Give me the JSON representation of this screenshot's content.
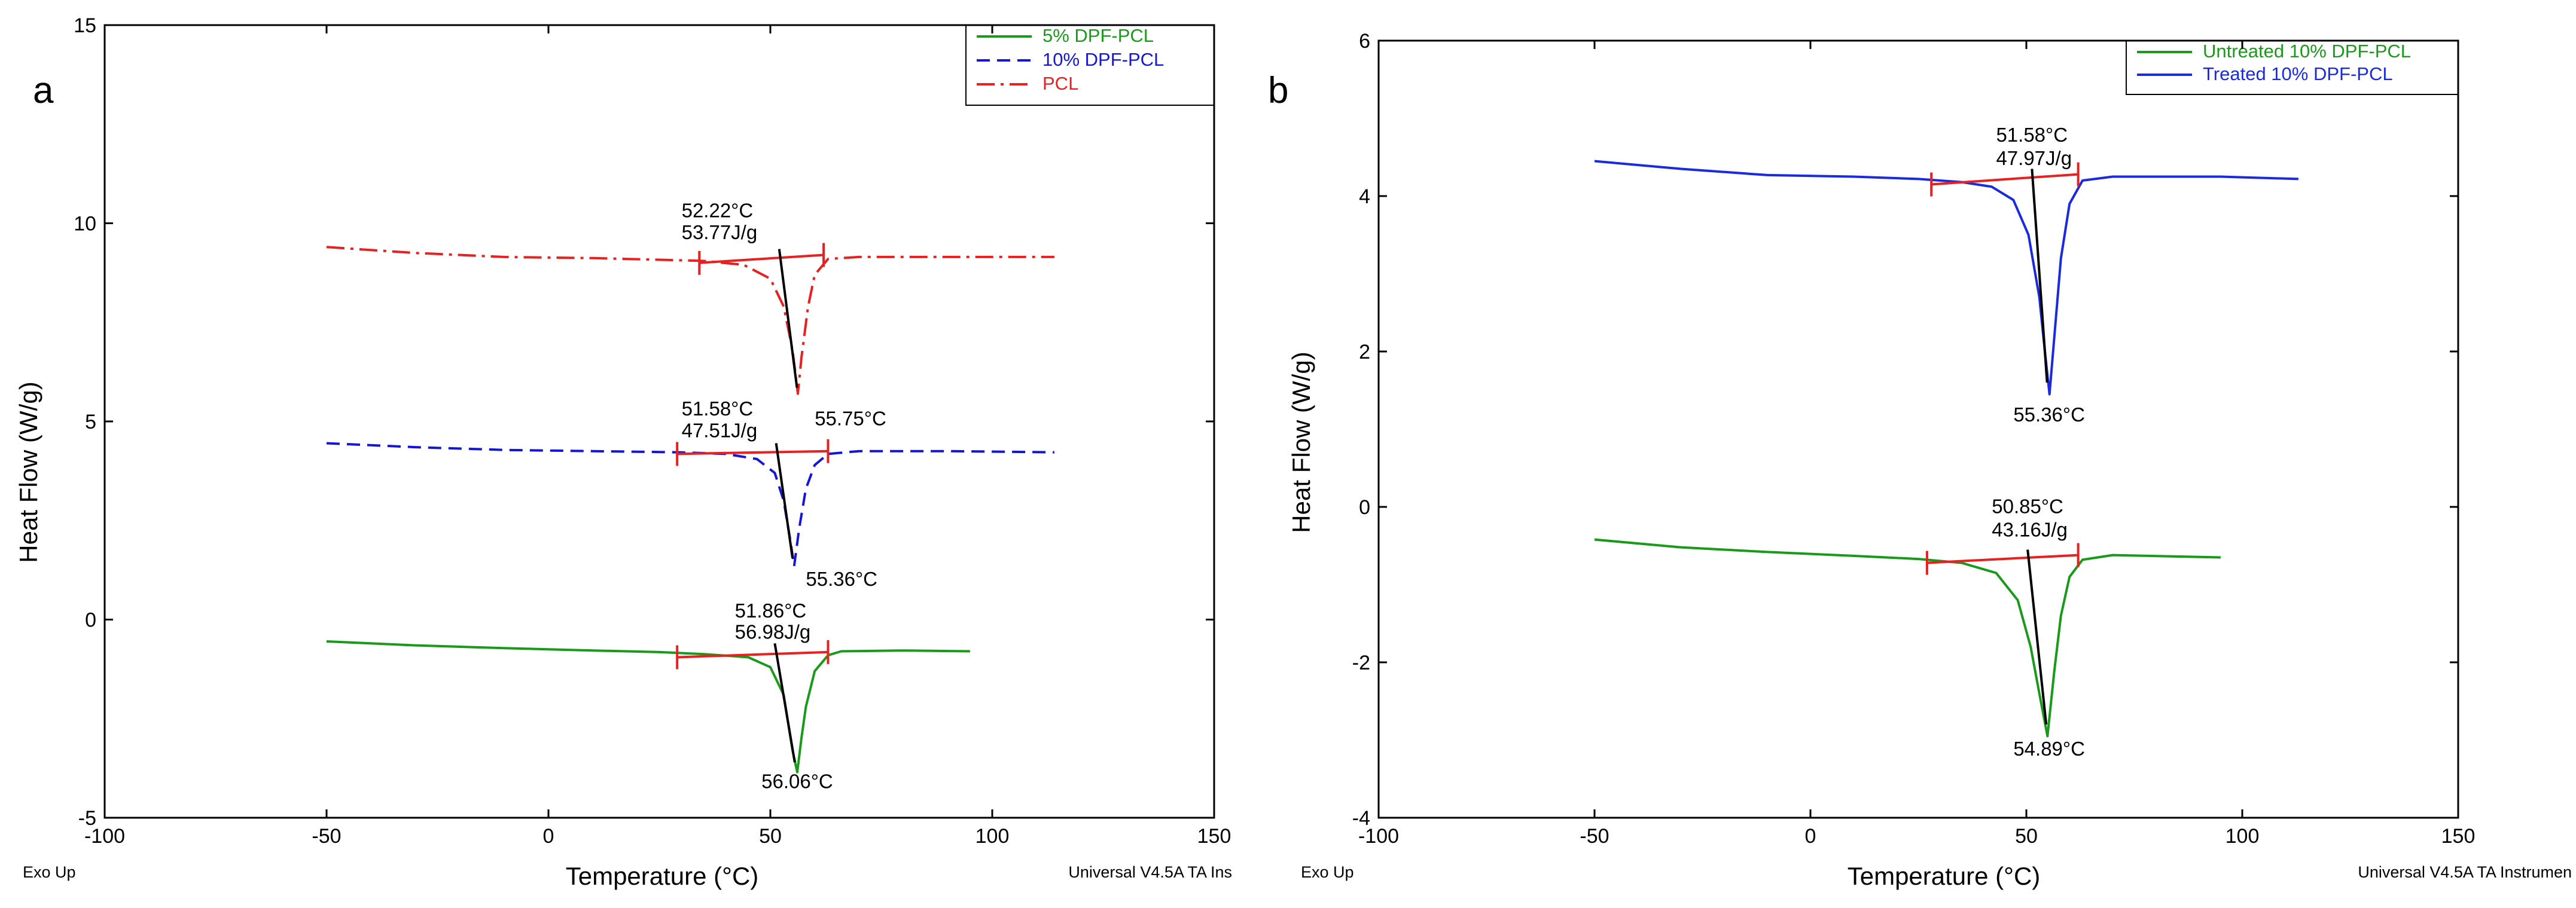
{
  "chart_data": [
    {
      "panel": "a",
      "type": "line",
      "xlabel": "Temperature (°C)",
      "ylabel": "Heat Flow (W/g)",
      "xlim": [
        -100,
        150
      ],
      "ylim": [
        -5,
        15
      ],
      "xticks": [
        -100,
        -50,
        0,
        50,
        100,
        150
      ],
      "yticks": [
        -5,
        0,
        5,
        10,
        15
      ],
      "footer_left": "Exo Up",
      "footer_right": "Universal V4.5A TA Ins",
      "legend": {
        "placement": "top-right"
      },
      "series": [
        {
          "name": "5% DPF-PCL",
          "color": "#1a9a1a",
          "dash": "solid",
          "points": [
            [
              -50,
              -0.55
            ],
            [
              -30,
              -0.65
            ],
            [
              -10,
              -0.72
            ],
            [
              10,
              -0.78
            ],
            [
              25,
              -0.82
            ],
            [
              35,
              -0.87
            ],
            [
              45,
              -0.95
            ],
            [
              50,
              -1.2
            ],
            [
              53,
              -1.9
            ],
            [
              55,
              -3.3
            ],
            [
              56.06,
              -3.85
            ],
            [
              57,
              -3.0
            ],
            [
              58,
              -2.2
            ],
            [
              60,
              -1.3
            ],
            [
              63,
              -0.9
            ],
            [
              66,
              -0.8
            ],
            [
              80,
              -0.78
            ],
            [
              95,
              -0.8
            ]
          ],
          "baseline": [
            [
              29,
              -0.95
            ],
            [
              63,
              -0.82
            ]
          ],
          "tangent": [
            [
              51,
              -0.6
            ],
            [
              55.5,
              -3.6
            ]
          ],
          "annotations": [
            {
              "text": "51.86°C",
              "x": 42,
              "y": 0.05
            },
            {
              "text": "56.98J/g",
              "x": 42,
              "y": -0.48
            },
            {
              "text": "56.06°C",
              "x": 48,
              "y": -4.25
            }
          ]
        },
        {
          "name": "10% DPF-PCL",
          "color": "#1515d6",
          "dash": "dashed",
          "points": [
            [
              -50,
              4.45
            ],
            [
              -30,
              4.35
            ],
            [
              -10,
              4.28
            ],
            [
              10,
              4.25
            ],
            [
              30,
              4.22
            ],
            [
              40,
              4.18
            ],
            [
              47,
              4.05
            ],
            [
              51,
              3.7
            ],
            [
              53,
              3.0
            ],
            [
              54.5,
              2.0
            ],
            [
              55.36,
              1.35
            ],
            [
              56.5,
              2.3
            ],
            [
              58,
              3.3
            ],
            [
              60,
              3.9
            ],
            [
              63,
              4.18
            ],
            [
              70,
              4.25
            ],
            [
              90,
              4.25
            ],
            [
              114,
              4.22
            ]
          ],
          "baseline": [
            [
              29,
              4.18
            ],
            [
              63,
              4.25
            ]
          ],
          "tangent": [
            [
              51.3,
              4.45
            ],
            [
              55,
              1.55
            ]
          ],
          "annotations": [
            {
              "text": "51.58°C",
              "x": 30,
              "y": 5.15
            },
            {
              "text": "47.51J/g",
              "x": 30,
              "y": 4.6
            },
            {
              "text": "55.75°C",
              "x": 60,
              "y": 4.9
            },
            {
              "text": "55.36°C",
              "x": 58,
              "y": 0.85
            }
          ]
        },
        {
          "name": "PCL",
          "color": "#e82020",
          "dash": "dashdot",
          "points": [
            [
              -50,
              9.4
            ],
            [
              -30,
              9.25
            ],
            [
              -10,
              9.15
            ],
            [
              10,
              9.12
            ],
            [
              25,
              9.08
            ],
            [
              35,
              9.05
            ],
            [
              44,
              8.95
            ],
            [
              50,
              8.6
            ],
            [
              53,
              7.9
            ],
            [
              55,
              6.8
            ],
            [
              56.2,
              5.7
            ],
            [
              57,
              6.6
            ],
            [
              58.5,
              7.9
            ],
            [
              60,
              8.7
            ],
            [
              63,
              9.1
            ],
            [
              70,
              9.15
            ],
            [
              90,
              9.15
            ],
            [
              114,
              9.15
            ]
          ],
          "baseline": [
            [
              34,
              9.0
            ],
            [
              62,
              9.2
            ]
          ],
          "tangent": [
            [
              52,
              9.35
            ],
            [
              56,
              5.85
            ]
          ],
          "annotations": [
            {
              "text": "52.22°C",
              "x": 30,
              "y": 10.15
            },
            {
              "text": "53.77J/g",
              "x": 30,
              "y": 9.6
            }
          ]
        }
      ]
    },
    {
      "panel": "b",
      "type": "line",
      "xlabel": "Temperature (°C)",
      "ylabel": "Heat Flow (W/g)",
      "xlim": [
        -100,
        150
      ],
      "ylim": [
        -4,
        6
      ],
      "xticks": [
        -100,
        -50,
        0,
        50,
        100,
        150
      ],
      "yticks": [
        -4,
        -2,
        0,
        2,
        4,
        6
      ],
      "footer_left": "Exo Up",
      "footer_right": "Universal V4.5A TA Instrumen",
      "legend": {
        "placement": "top-right"
      },
      "series": [
        {
          "name": "Untreated 10% DPF-PCL",
          "color": "#1a9a1a",
          "dash": "solid",
          "points": [
            [
              -50,
              -0.42
            ],
            [
              -30,
              -0.52
            ],
            [
              -10,
              -0.58
            ],
            [
              10,
              -0.63
            ],
            [
              25,
              -0.67
            ],
            [
              35,
              -0.72
            ],
            [
              43,
              -0.85
            ],
            [
              48,
              -1.2
            ],
            [
              51,
              -1.8
            ],
            [
              53,
              -2.4
            ],
            [
              54.89,
              -2.95
            ],
            [
              56.5,
              -2.1
            ],
            [
              58,
              -1.4
            ],
            [
              60,
              -0.9
            ],
            [
              63,
              -0.68
            ],
            [
              70,
              -0.62
            ],
            [
              95,
              -0.65
            ]
          ],
          "baseline": [
            [
              27,
              -0.72
            ],
            [
              62,
              -0.62
            ]
          ],
          "tangent": [
            [
              50.3,
              -0.55
            ],
            [
              54.6,
              -2.8
            ]
          ],
          "annotations": [
            {
              "text": "50.85°C",
              "x": 42,
              "y": -0.08
            },
            {
              "text": "43.16J/g",
              "x": 42,
              "y": -0.38
            },
            {
              "text": "54.89°C",
              "x": 47,
              "y": -3.2
            }
          ]
        },
        {
          "name": "Treated 10% DPF-PCL",
          "color": "#1a2ae0",
          "dash": "solid",
          "points": [
            [
              -50,
              4.45
            ],
            [
              -30,
              4.35
            ],
            [
              -10,
              4.27
            ],
            [
              10,
              4.25
            ],
            [
              25,
              4.22
            ],
            [
              35,
              4.18
            ],
            [
              42,
              4.12
            ],
            [
              47,
              3.95
            ],
            [
              50.5,
              3.5
            ],
            [
              53,
              2.7
            ],
            [
              54.3,
              2.0
            ],
            [
              55.36,
              1.45
            ],
            [
              56.5,
              2.2
            ],
            [
              58,
              3.2
            ],
            [
              60,
              3.9
            ],
            [
              63,
              4.2
            ],
            [
              70,
              4.25
            ],
            [
              95,
              4.25
            ],
            [
              113,
              4.22
            ]
          ],
          "baseline": [
            [
              28,
              4.15
            ],
            [
              62,
              4.28
            ]
          ],
          "tangent": [
            [
              51.3,
              4.35
            ],
            [
              54.8,
              1.6
            ]
          ],
          "annotations": [
            {
              "text": "51.58°C",
              "x": 43,
              "y": 4.7
            },
            {
              "text": "47.97J/g",
              "x": 43,
              "y": 4.4
            },
            {
              "text": "55.36°C",
              "x": 47,
              "y": 1.1
            }
          ]
        }
      ]
    }
  ]
}
